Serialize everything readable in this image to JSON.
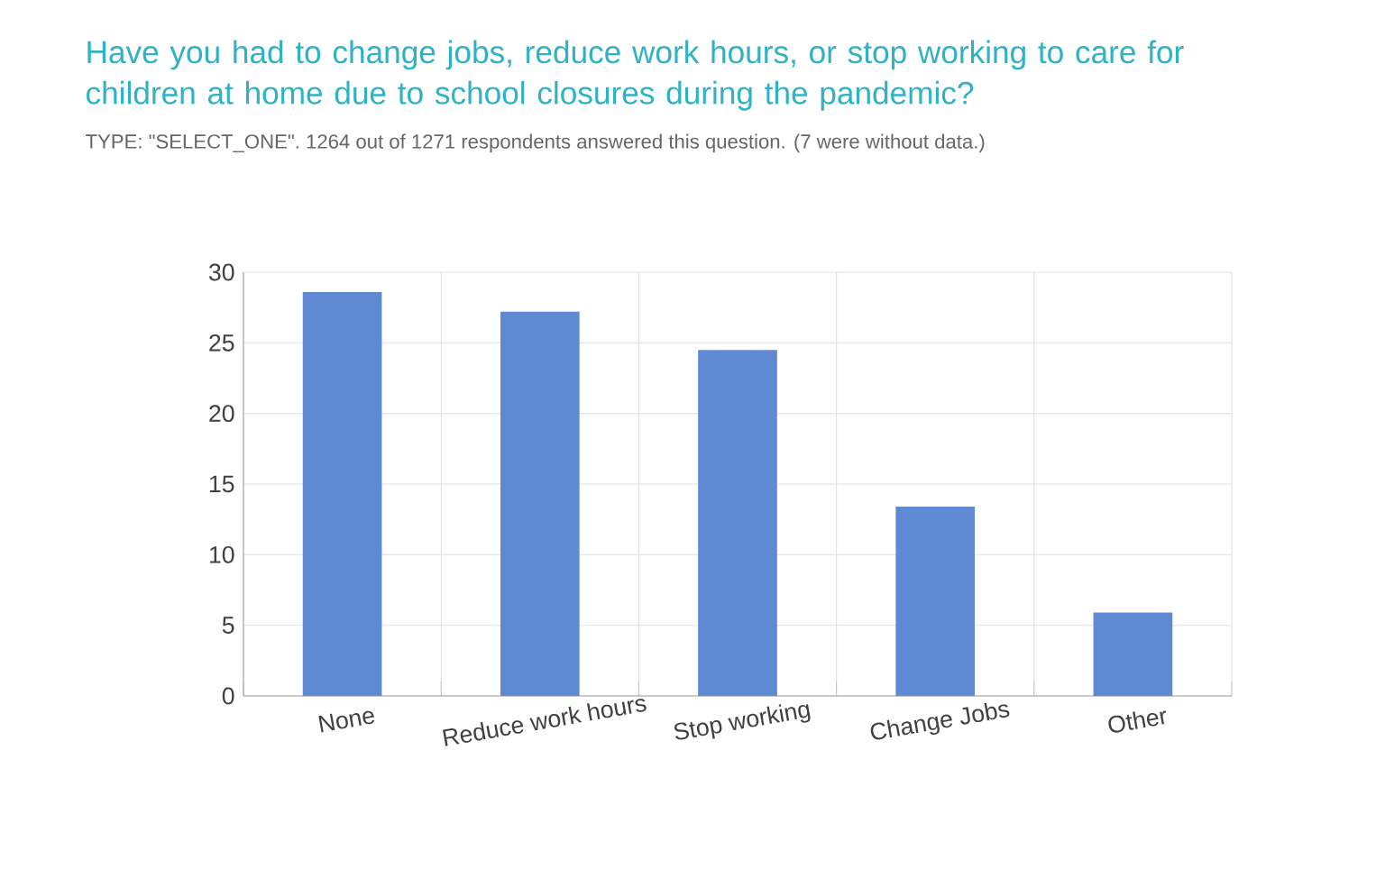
{
  "chart_data": {
    "type": "bar",
    "title": "Have you had to change jobs, reduce work hours, or stop working to care for children at home due to school closures during the pandemic?",
    "subtitle": "TYPE: \"SELECT_ONE\". 1264 out of 1271 respondents answered this question. (7 were without data.)",
    "categories": [
      "None",
      "Reduce work hours",
      "Stop working",
      "Change Jobs",
      "Other"
    ],
    "values": [
      28.6,
      27.2,
      24.5,
      13.4,
      5.9
    ],
    "color": "#5f8ad3",
    "ylim": [
      0,
      30
    ],
    "yticks": [
      0,
      5,
      10,
      15,
      20,
      25,
      30
    ],
    "grid": true
  }
}
